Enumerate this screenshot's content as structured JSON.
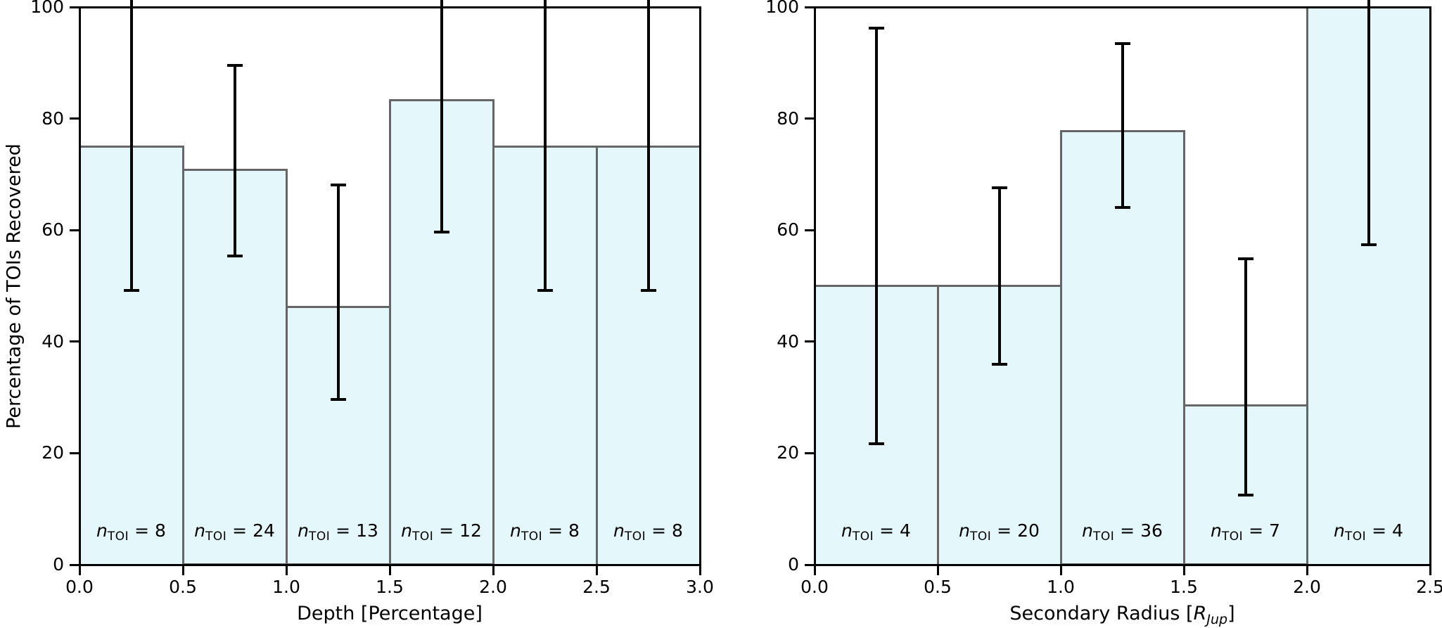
{
  "figure": {
    "background": "#ffffff",
    "colors": {
      "bar_fill": "#e4f8fb",
      "bar_edge": "#666666",
      "error_bar": "#000000",
      "axis": "#000000",
      "text": "#000000"
    }
  },
  "chart_data": [
    {
      "type": "bar",
      "title": "",
      "xlabel": "Depth [Percentage]",
      "xlabel_parts": [
        {
          "text": "Depth [Percentage]",
          "style": "normal"
        }
      ],
      "ylabel": "Percentage of TOIs Recovered",
      "xlim": [
        0.0,
        3.0
      ],
      "ylim": [
        0,
        100
      ],
      "grid": false,
      "x_ticks": [
        "0.0",
        "0.5",
        "1.0",
        "1.5",
        "2.0",
        "2.5",
        "3.0"
      ],
      "x_tick_values": [
        0.0,
        0.5,
        1.0,
        1.5,
        2.0,
        2.5,
        3.0
      ],
      "y_ticks": [
        "0",
        "20",
        "40",
        "60",
        "80",
        "100"
      ],
      "y_tick_values": [
        0,
        20,
        40,
        60,
        80,
        100
      ],
      "bin_edges": [
        0.0,
        0.5,
        1.0,
        1.5,
        2.0,
        2.5,
        3.0
      ],
      "bar_label_format": {
        "var": "n",
        "subscript": "TOI",
        "equals": " = "
      },
      "bars": [
        {
          "bin": "0.0-0.5",
          "value": 75.0,
          "err_lo": 49.2,
          "err_hi": 100,
          "err_hi_clipped": true,
          "n_toi": 8
        },
        {
          "bin": "0.5-1.0",
          "value": 70.8,
          "err_lo": 55.4,
          "err_hi": 89.5,
          "err_hi_clipped": false,
          "n_toi": 24
        },
        {
          "bin": "1.0-1.5",
          "value": 46.2,
          "err_lo": 29.6,
          "err_hi": 68.1,
          "err_hi_clipped": false,
          "n_toi": 13
        },
        {
          "bin": "1.5-2.0",
          "value": 83.3,
          "err_lo": 59.6,
          "err_hi": 100,
          "err_hi_clipped": true,
          "n_toi": 12
        },
        {
          "bin": "2.0-2.5",
          "value": 75.0,
          "err_lo": 49.2,
          "err_hi": 100,
          "err_hi_clipped": true,
          "n_toi": 8
        },
        {
          "bin": "2.5-3.0",
          "value": 75.0,
          "err_lo": 49.2,
          "err_hi": 100,
          "err_hi_clipped": true,
          "n_toi": 8
        }
      ]
    },
    {
      "type": "bar",
      "title": "",
      "xlabel": "Secondary Radius [R_Jup]",
      "xlabel_parts": [
        {
          "text": "Secondary Radius [",
          "style": "normal"
        },
        {
          "text": "R",
          "style": "italic"
        },
        {
          "text": "Jup",
          "style": "italic_sub"
        },
        {
          "text": "]",
          "style": "normal"
        }
      ],
      "ylabel": "",
      "xlim": [
        0.0,
        2.5
      ],
      "ylim": [
        0,
        100
      ],
      "grid": false,
      "x_ticks": [
        "0.0",
        "0.5",
        "1.0",
        "1.5",
        "2.0",
        "2.5"
      ],
      "x_tick_values": [
        0.0,
        0.5,
        1.0,
        1.5,
        2.0,
        2.5
      ],
      "y_ticks": [
        "0",
        "20",
        "40",
        "60",
        "80",
        "100"
      ],
      "y_tick_values": [
        0,
        20,
        40,
        60,
        80,
        100
      ],
      "bin_edges": [
        0.0,
        0.5,
        1.0,
        1.5,
        2.0,
        2.5
      ],
      "bar_label_format": {
        "var": "n",
        "subscript": "TOI",
        "equals": " = "
      },
      "bars": [
        {
          "bin": "0.0-0.5",
          "value": 50.0,
          "err_lo": 21.7,
          "err_hi": 96.2,
          "err_hi_clipped": false,
          "n_toi": 4
        },
        {
          "bin": "0.5-1.0",
          "value": 50.0,
          "err_lo": 36.0,
          "err_hi": 67.6,
          "err_hi_clipped": false,
          "n_toi": 20
        },
        {
          "bin": "1.0-1.5",
          "value": 77.8,
          "err_lo": 64.0,
          "err_hi": 93.4,
          "err_hi_clipped": false,
          "n_toi": 36
        },
        {
          "bin": "1.5-2.0",
          "value": 28.6,
          "err_lo": 12.5,
          "err_hi": 54.9,
          "err_hi_clipped": false,
          "n_toi": 7
        },
        {
          "bin": "2.0-2.5",
          "value": 100.0,
          "err_lo": 57.4,
          "err_hi": 100,
          "err_hi_clipped": true,
          "n_toi": 4
        }
      ]
    }
  ]
}
